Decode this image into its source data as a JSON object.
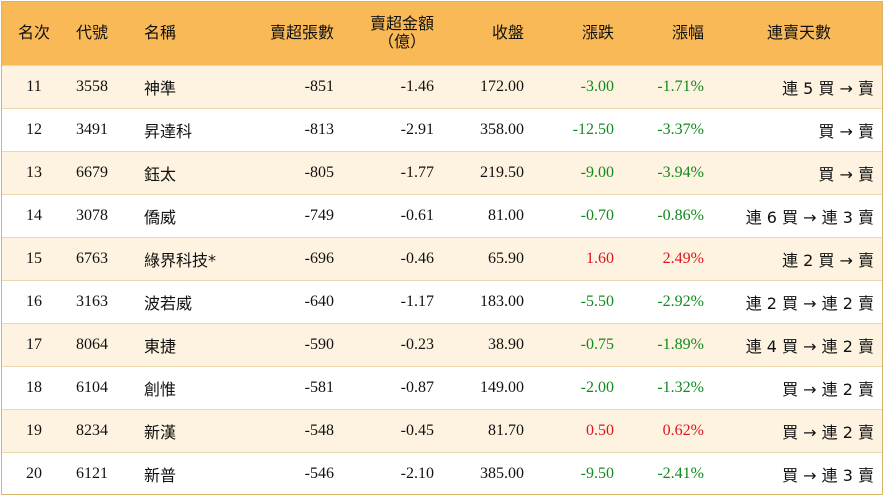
{
  "header": {
    "rank": "名次",
    "code": "代號",
    "name": "名稱",
    "net_lots": "賣超張數",
    "net_amount_line1": "賣超金額",
    "net_amount_line2": "（億）",
    "close": "收盤",
    "change": "漲跌",
    "change_pct": "漲幅",
    "streak": "連賣天數"
  },
  "rows": [
    {
      "rank": "11",
      "code": "3558",
      "name": "神準",
      "lots": "-851",
      "amount": "-1.46",
      "close": "172.00",
      "change": "-3.00",
      "pct": "-1.71%",
      "streak": "連 5 買 → 賣",
      "dir": "neg"
    },
    {
      "rank": "12",
      "code": "3491",
      "name": "昇達科",
      "lots": "-813",
      "amount": "-2.91",
      "close": "358.00",
      "change": "-12.50",
      "pct": "-3.37%",
      "streak": "買 → 賣",
      "dir": "neg"
    },
    {
      "rank": "13",
      "code": "6679",
      "name": "鈺太",
      "lots": "-805",
      "amount": "-1.77",
      "close": "219.50",
      "change": "-9.00",
      "pct": "-3.94%",
      "streak": "買 → 賣",
      "dir": "neg"
    },
    {
      "rank": "14",
      "code": "3078",
      "name": "僑威",
      "lots": "-749",
      "amount": "-0.61",
      "close": "81.00",
      "change": "-0.70",
      "pct": "-0.86%",
      "streak": "連 6 買 → 連 3 賣",
      "dir": "neg"
    },
    {
      "rank": "15",
      "code": "6763",
      "name": "綠界科技*",
      "lots": "-696",
      "amount": "-0.46",
      "close": "65.90",
      "change": "1.60",
      "pct": "2.49%",
      "streak": "連 2 買 → 賣",
      "dir": "pos"
    },
    {
      "rank": "16",
      "code": "3163",
      "name": "波若威",
      "lots": "-640",
      "amount": "-1.17",
      "close": "183.00",
      "change": "-5.50",
      "pct": "-2.92%",
      "streak": "連 2 買 → 連 2 賣",
      "dir": "neg"
    },
    {
      "rank": "17",
      "code": "8064",
      "name": "東捷",
      "lots": "-590",
      "amount": "-0.23",
      "close": "38.90",
      "change": "-0.75",
      "pct": "-1.89%",
      "streak": "連 4 買 → 連 2 賣",
      "dir": "neg"
    },
    {
      "rank": "18",
      "code": "6104",
      "name": "創惟",
      "lots": "-581",
      "amount": "-0.87",
      "close": "149.00",
      "change": "-2.00",
      "pct": "-1.32%",
      "streak": "買 → 連 2 賣",
      "dir": "neg"
    },
    {
      "rank": "19",
      "code": "8234",
      "name": "新漢",
      "lots": "-548",
      "amount": "-0.45",
      "close": "81.70",
      "change": "0.50",
      "pct": "0.62%",
      "streak": "買 → 連 2 賣",
      "dir": "pos"
    },
    {
      "rank": "20",
      "code": "6121",
      "name": "新普",
      "lots": "-546",
      "amount": "-2.10",
      "close": "385.00",
      "change": "-9.50",
      "pct": "-2.41%",
      "streak": "買 → 連 3 賣",
      "dir": "neg"
    }
  ],
  "colors": {
    "header_bg": "#f9b957",
    "odd_row_bg": "#fdf3e0",
    "even_row_bg": "#ffffff",
    "down": "#118a1e",
    "up": "#e0141e"
  }
}
